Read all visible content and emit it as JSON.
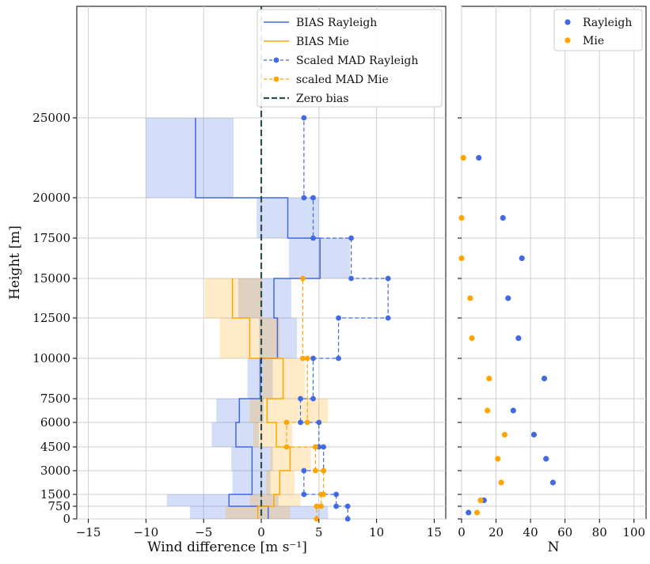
{
  "chart_data": [
    {
      "type": "line",
      "xlabel": "Wind difference [m s⁻¹]",
      "ylabel": "Height [m]",
      "xlim": [
        -16,
        16
      ],
      "ylim": [
        0,
        33000
      ],
      "xticks": [
        -15,
        -10,
        -5,
        0,
        5,
        10,
        15
      ],
      "yticks": [
        "0",
        "750",
        "1500",
        "3000",
        "4500",
        "6000",
        "7500",
        "10000",
        "12500",
        "15000",
        "17500",
        "20000",
        "25000"
      ],
      "grid": true,
      "legend_position": "top-right",
      "legend": [
        "BIAS Rayleigh",
        "BIAS Mie",
        "Scaled MAD Rayleigh",
        "scaled MAD Mie",
        "Zero bias"
      ],
      "colors": {
        "rayleigh": "#4169e1",
        "mie": "#ffa500",
        "zero": "#2f4f4f"
      },
      "height_bin_edges": [
        0,
        750,
        1500,
        3000,
        4500,
        6000,
        7500,
        10000,
        12500,
        15000,
        17500,
        20000,
        25000
      ],
      "bias_rayleigh": [
        0.6,
        -2.8,
        -0.8,
        -0.8,
        -2.2,
        -1.9,
        -0.1,
        1.4,
        1.1,
        5.1,
        2.3,
        -5.7
      ],
      "bias_rayleigh_band": [
        [
          -6.2,
          5.8
        ],
        [
          -8.2,
          1.5
        ],
        [
          -2.5,
          0.8
        ],
        [
          -2.6,
          1.0
        ],
        [
          -4.3,
          -0.2
        ],
        [
          -3.9,
          0.2
        ],
        [
          -1.2,
          1.0
        ],
        [
          -0.2,
          3.1
        ],
        [
          -2.0,
          2.6
        ],
        [
          2.4,
          7.7
        ],
        [
          -0.4,
          5.0
        ],
        [
          -10.0,
          -2.4
        ]
      ],
      "bias_mie": [
        -0.3,
        1.1,
        1.6,
        2.5,
        1.3,
        0.5,
        1.9,
        -1.0,
        -2.5
      ],
      "bias_mie_band": [
        [
          -3.1,
          2.5
        ],
        [
          -1.0,
          3.4
        ],
        [
          0.4,
          2.9
        ],
        [
          0.8,
          4.3
        ],
        [
          -0.7,
          2.7
        ],
        [
          -1.0,
          5.8
        ],
        [
          0.1,
          3.8
        ],
        [
          -3.6,
          1.6
        ],
        [
          -4.9,
          0.1
        ]
      ],
      "mad_rayleigh_step": [
        [
          7.5,
          0
        ],
        [
          7.5,
          750
        ],
        [
          6.5,
          750
        ],
        [
          6.5,
          1500
        ],
        [
          3.7,
          1500
        ],
        [
          3.7,
          3000
        ],
        [
          5.4,
          3000
        ],
        [
          5.4,
          4500
        ],
        [
          5.0,
          4500
        ],
        [
          5.0,
          6000
        ],
        [
          3.4,
          6000
        ],
        [
          3.4,
          7500
        ],
        [
          4.5,
          7500
        ],
        [
          4.5,
          10000
        ],
        [
          6.7,
          10000
        ],
        [
          6.7,
          12500
        ],
        [
          11.0,
          12500
        ],
        [
          11.0,
          15000
        ],
        [
          7.8,
          15000
        ],
        [
          7.8,
          17500
        ],
        [
          4.5,
          17500
        ],
        [
          4.5,
          20000
        ],
        [
          3.7,
          20000
        ],
        [
          3.7,
          25000
        ]
      ],
      "mad_mie_step": [
        [
          4.8,
          0
        ],
        [
          4.8,
          750
        ],
        [
          5.2,
          750
        ],
        [
          5.2,
          1500
        ],
        [
          5.4,
          1500
        ],
        [
          5.4,
          3000
        ],
        [
          4.7,
          3000
        ],
        [
          4.7,
          4500
        ],
        [
          2.2,
          4500
        ],
        [
          2.2,
          6000
        ],
        [
          4.0,
          6000
        ],
        [
          4.0,
          10000
        ],
        [
          3.6,
          10000
        ],
        [
          3.6,
          15000
        ]
      ],
      "mad_rayleigh_points_x": [
        7.5,
        6.5,
        3.7,
        5.4,
        5.0,
        3.4,
        4.5,
        6.7,
        11.0,
        7.8,
        4.5,
        3.7
      ],
      "mad_mie_points_x": [
        4.8,
        5.2,
        5.4,
        4.7,
        2.2,
        4.0,
        3.6
      ]
    },
    {
      "type": "scatter",
      "xlabel": "N",
      "xlim": [
        0,
        107
      ],
      "xticks": [
        0,
        20,
        40,
        60,
        80,
        100
      ],
      "grid": true,
      "legend_position": "top-right",
      "series": [
        {
          "name": "Rayleigh",
          "color": "#4169e1",
          "x": [
            4,
            13,
            53,
            49,
            42,
            30,
            48,
            33,
            27,
            35,
            24,
            10
          ],
          "y": [
            375,
            1125,
            2250,
            3750,
            5250,
            6750,
            8750,
            11250,
            13750,
            16250,
            18750,
            22500
          ]
        },
        {
          "name": "Mie",
          "color": "#ffa500",
          "x": [
            9,
            11,
            23,
            21,
            25,
            15,
            16,
            6,
            5,
            0,
            0,
            1
          ],
          "y": [
            375,
            1125,
            2250,
            3750,
            5250,
            6750,
            8750,
            11250,
            13750,
            16250,
            18750,
            22500
          ]
        }
      ]
    }
  ]
}
